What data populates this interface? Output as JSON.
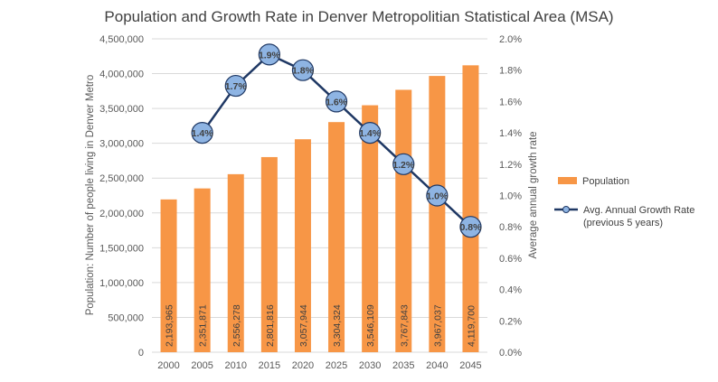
{
  "chart_data": {
    "type": "bar",
    "title": "Population and Growth Rate in Denver Metropolitian Statistical Area (MSA)",
    "categories": [
      "2000",
      "2005",
      "2010",
      "2015",
      "2020",
      "2025",
      "2030",
      "2035",
      "2040",
      "2045"
    ],
    "series": [
      {
        "name": "Population",
        "type": "bar",
        "axis": "left",
        "color": "#F79646",
        "values": [
          2193965,
          2351871,
          2556278,
          2801816,
          3057944,
          3304324,
          3546109,
          3767843,
          3967037,
          4119700
        ],
        "data_labels": [
          "2,193,965",
          "2,351,871",
          "2,556,278",
          "2,801,816",
          "3,057,944",
          "3,304,324",
          "3,546,109",
          "3,767,843",
          "3,967,037",
          "4,119,700"
        ]
      },
      {
        "name": "Avg. Annual Growth Rate",
        "name_line2": "(previous 5 years)",
        "type": "line",
        "axis": "right",
        "color": "#1F3864",
        "marker_color": "#8EB4E3",
        "values": [
          null,
          1.4,
          1.7,
          1.9,
          1.8,
          1.6,
          1.4,
          1.2,
          1.0,
          0.8
        ],
        "data_labels": [
          "",
          "1.4%",
          "1.7%",
          "1.9%",
          "1.8%",
          "1.6%",
          "1.4%",
          "1.2%",
          "1.0%",
          "0.8%"
        ]
      }
    ],
    "y_left": {
      "label": "Population: Number  of people living in Denver Metro",
      "range": [
        0,
        4500000
      ],
      "ticks": [
        "0",
        "500,000",
        "1,000,000",
        "1,500,000",
        "2,000,000",
        "2,500,000",
        "3,000,000",
        "3,500,000",
        "4,000,000",
        "4,500,000"
      ]
    },
    "y_right": {
      "label": "Average annual growth rate",
      "range": [
        0,
        2.0
      ],
      "ticks": [
        "0.0%",
        "0.2%",
        "0.4%",
        "0.6%",
        "0.8%",
        "1.0%",
        "1.2%",
        "1.4%",
        "1.6%",
        "1.8%",
        "2.0%"
      ]
    },
    "grid": true,
    "legend_position": "right"
  }
}
